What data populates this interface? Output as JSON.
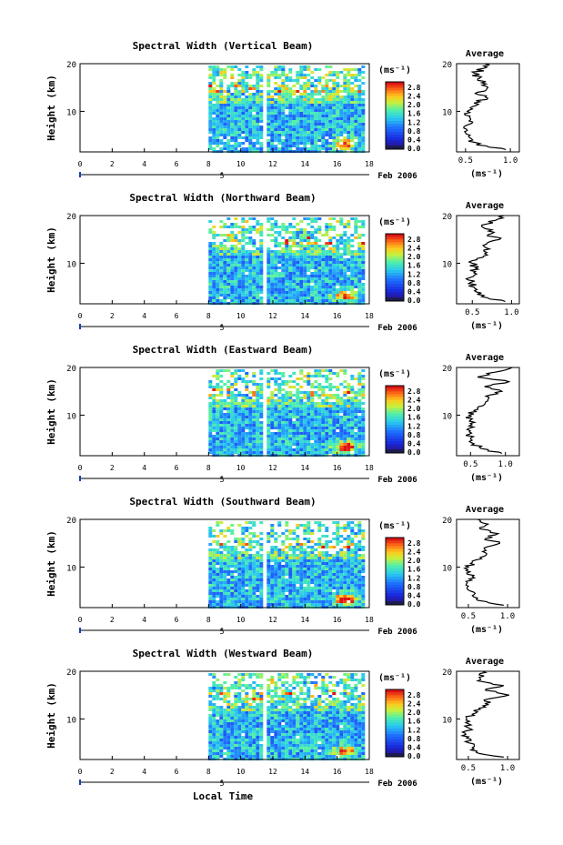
{
  "footer": {
    "xlabel": "Local Time"
  },
  "chart_data": [
    {
      "type": "heatmap",
      "title": "Spectral Width (Vertical Beam)",
      "ylabel": "Height (km)",
      "yticks": [
        "10",
        "20"
      ],
      "xticks": [
        "0",
        "2",
        "4",
        "6",
        "8",
        "10",
        "12",
        "14",
        "16",
        "18"
      ],
      "date_label": "Feb 2006",
      "date_axis_tick": "5",
      "xlim": [
        0,
        18
      ],
      "ylim": [
        1.5,
        20
      ],
      "colorbar": {
        "unit": "(ms⁻¹)",
        "ticks": [
          "2.8",
          "2.4",
          "2.0",
          "1.6",
          "1.2",
          "0.8",
          "0.4",
          "0.0"
        ]
      },
      "data_gap_hours": [
        11.2,
        11.5
      ],
      "data_start_hours": 8,
      "average_profile": {
        "title": "Average",
        "xlabel": "(ms⁻¹)",
        "xticks": [
          "0.5",
          "1.0"
        ],
        "yticks": [
          "10",
          "20"
        ],
        "xlim": [
          0.4,
          1.1
        ],
        "ylim": [
          1.5,
          20
        ],
        "heights": [
          2,
          3,
          4,
          5,
          6,
          7,
          8,
          9,
          10,
          11,
          12,
          13,
          14,
          15,
          16,
          17,
          18,
          19,
          20
        ],
        "values": [
          0.95,
          0.62,
          0.58,
          0.55,
          0.52,
          0.5,
          0.54,
          0.55,
          0.52,
          0.58,
          0.66,
          0.72,
          0.63,
          0.75,
          0.68,
          0.66,
          0.6,
          0.7,
          0.72
        ]
      }
    },
    {
      "type": "heatmap",
      "title": "Spectral Width (Northward Beam)",
      "ylabel": "Height (km)",
      "yticks": [
        "10",
        "20"
      ],
      "xticks": [
        "0",
        "2",
        "4",
        "6",
        "8",
        "10",
        "12",
        "14",
        "16",
        "18"
      ],
      "date_label": "Feb 2006",
      "date_axis_tick": "5",
      "xlim": [
        0,
        18
      ],
      "ylim": [
        1.5,
        20
      ],
      "colorbar": {
        "unit": "(ms⁻¹)",
        "ticks": [
          "2.8",
          "2.4",
          "2.0",
          "1.6",
          "1.2",
          "0.8",
          "0.4",
          "0.0"
        ]
      },
      "data_gap_hours": [
        11.2,
        11.5
      ],
      "data_start_hours": 8,
      "average_profile": {
        "title": "Average",
        "xlabel": "(ms⁻¹)",
        "xticks": [
          "0.5",
          "1.0"
        ],
        "yticks": [
          "10",
          "20"
        ],
        "xlim": [
          0.3,
          1.1
        ],
        "ylim": [
          1.5,
          20
        ],
        "heights": [
          2,
          3,
          4,
          5,
          6,
          7,
          8,
          9,
          10,
          11,
          12,
          13,
          14,
          15,
          16,
          17,
          18,
          19,
          20
        ],
        "values": [
          0.92,
          0.62,
          0.55,
          0.52,
          0.48,
          0.47,
          0.52,
          0.54,
          0.5,
          0.56,
          0.66,
          0.72,
          0.68,
          0.85,
          0.7,
          0.75,
          0.62,
          0.8,
          0.9
        ]
      }
    },
    {
      "type": "heatmap",
      "title": "Spectral Width (Eastward Beam)",
      "ylabel": "Height (km)",
      "yticks": [
        "10",
        "20"
      ],
      "xticks": [
        "0",
        "2",
        "4",
        "6",
        "8",
        "10",
        "12",
        "14",
        "16",
        "18"
      ],
      "date_label": "Feb 2006",
      "date_axis_tick": "5",
      "xlim": [
        0,
        18
      ],
      "ylim": [
        1.5,
        20
      ],
      "colorbar": {
        "unit": "(ms⁻¹)",
        "ticks": [
          "2.8",
          "2.4",
          "2.0",
          "1.6",
          "1.2",
          "0.8",
          "0.4",
          "0.0"
        ]
      },
      "data_gap_hours": [
        11.2,
        11.5
      ],
      "data_start_hours": 8,
      "average_profile": {
        "title": "Average",
        "xlabel": "(ms⁻¹)",
        "xticks": [
          "0.5",
          "1.0"
        ],
        "yticks": [
          "10",
          "20"
        ],
        "xlim": [
          0.3,
          1.2
        ],
        "ylim": [
          1.5,
          20
        ],
        "heights": [
          2,
          3,
          4,
          5,
          6,
          7,
          8,
          9,
          10,
          11,
          12,
          13,
          14,
          15,
          16,
          17,
          18,
          19,
          20
        ],
        "values": [
          0.95,
          0.65,
          0.55,
          0.5,
          0.48,
          0.45,
          0.52,
          0.5,
          0.48,
          0.55,
          0.68,
          0.75,
          0.72,
          0.95,
          0.7,
          1.05,
          0.6,
          0.85,
          1.1
        ]
      }
    },
    {
      "type": "heatmap",
      "title": "Spectral Width (Southward Beam)",
      "ylabel": "Height (km)",
      "yticks": [
        "10",
        "20"
      ],
      "xticks": [
        "0",
        "2",
        "4",
        "6",
        "8",
        "10",
        "12",
        "14",
        "16",
        "18"
      ],
      "date_label": "Feb 2006",
      "date_axis_tick": "5",
      "xlim": [
        0,
        18
      ],
      "ylim": [
        1.5,
        20
      ],
      "colorbar": {
        "unit": "(ms⁻¹)",
        "ticks": [
          "2.8",
          "2.4",
          "2.0",
          "1.6",
          "1.2",
          "0.8",
          "0.4",
          "0.0"
        ]
      },
      "data_gap_hours": [
        11.2,
        11.5
      ],
      "data_start_hours": 8,
      "average_profile": {
        "title": "Average",
        "xlabel": "(ms⁻¹)",
        "xticks": [
          "0.5",
          "1.0"
        ],
        "yticks": [
          "10",
          "20"
        ],
        "xlim": [
          0.35,
          1.15
        ],
        "ylim": [
          1.5,
          20
        ],
        "heights": [
          2,
          3,
          4,
          5,
          6,
          7,
          8,
          9,
          10,
          11,
          12,
          13,
          14,
          15,
          16,
          17,
          18,
          19,
          20
        ],
        "values": [
          0.95,
          0.62,
          0.55,
          0.52,
          0.5,
          0.47,
          0.55,
          0.52,
          0.5,
          0.55,
          0.65,
          0.72,
          0.7,
          0.9,
          0.72,
          0.88,
          0.65,
          0.75,
          0.62
        ]
      }
    },
    {
      "type": "heatmap",
      "title": "Spectral Width (Westward Beam)",
      "ylabel": "Height (km)",
      "yticks": [
        "10",
        "20"
      ],
      "xticks": [
        "0",
        "2",
        "4",
        "6",
        "8",
        "10",
        "12",
        "14",
        "16",
        "18"
      ],
      "date_label": "Feb 2006",
      "date_axis_tick": "5",
      "xlim": [
        0,
        18
      ],
      "ylim": [
        1.5,
        20
      ],
      "colorbar": {
        "unit": "(ms⁻¹)",
        "ticks": [
          "2.8",
          "2.4",
          "2.0",
          "1.6",
          "1.2",
          "0.8",
          "0.4",
          "0.0"
        ]
      },
      "data_gap_hours": [
        11.2,
        11.5
      ],
      "data_start_hours": 8,
      "average_profile": {
        "title": "Average",
        "xlabel": "(ms⁻¹)",
        "xticks": [
          "0.5",
          "1.0"
        ],
        "yticks": [
          "10",
          "20"
        ],
        "xlim": [
          0.35,
          1.15
        ],
        "ylim": [
          1.5,
          20
        ],
        "heights": [
          2,
          3,
          4,
          5,
          6,
          7,
          8,
          9,
          10,
          11,
          12,
          13,
          14,
          15,
          16,
          17,
          18,
          19,
          20
        ],
        "values": [
          0.95,
          0.6,
          0.55,
          0.5,
          0.48,
          0.46,
          0.52,
          0.5,
          0.48,
          0.55,
          0.65,
          0.75,
          0.7,
          1.02,
          0.72,
          0.95,
          0.62,
          0.7,
          0.68
        ]
      }
    }
  ]
}
